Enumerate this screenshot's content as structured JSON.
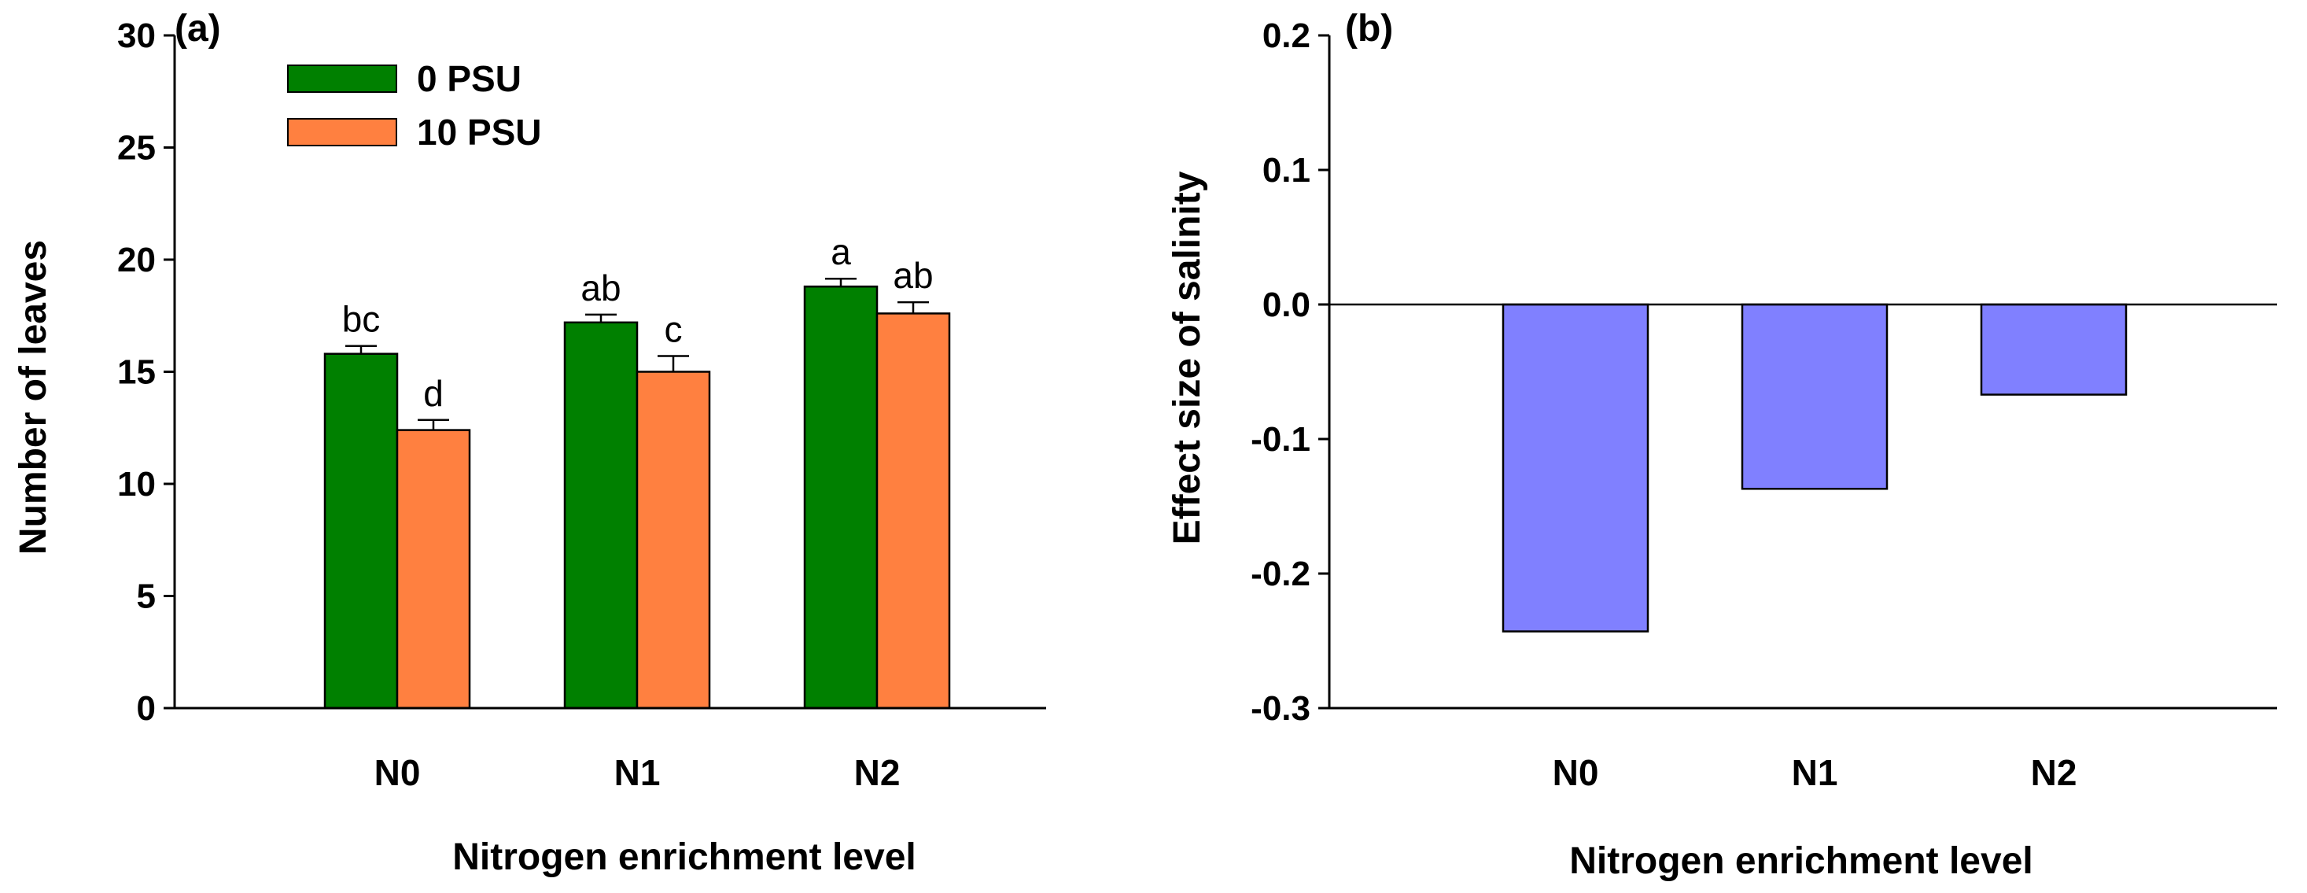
{
  "colors": {
    "series_0psu": "#008000",
    "series_10psu": "#FF8040",
    "effect_bar": "#8080FF",
    "axis": "#000000"
  },
  "chart_data": [
    {
      "panel": "(a)",
      "type": "bar",
      "xlabel": "Nitrogen enrichment level",
      "ylabel": "Number of leaves",
      "categories": [
        "N0",
        "N1",
        "N2"
      ],
      "ylim": [
        0,
        30
      ],
      "yticks": [
        0,
        5,
        10,
        15,
        20,
        25,
        30
      ],
      "legend_position": "top-left",
      "series": [
        {
          "name": "0 PSU",
          "color": "#008000",
          "values": [
            15.8,
            17.2,
            18.8
          ],
          "errors": [
            0.35,
            0.35,
            0.35
          ],
          "letters": [
            "bc",
            "ab",
            "a"
          ]
        },
        {
          "name": "10 PSU",
          "color": "#FF8040",
          "values": [
            12.4,
            15.0,
            17.6
          ],
          "errors": [
            0.45,
            0.7,
            0.5
          ],
          "letters": [
            "d",
            "c",
            "ab"
          ]
        }
      ]
    },
    {
      "panel": "(b)",
      "type": "bar",
      "xlabel": "Nitrogen enrichment level",
      "ylabel": "Effect size of salinity",
      "categories": [
        "N0",
        "N1",
        "N2"
      ],
      "ylim": [
        -0.3,
        0.2
      ],
      "yticks": [
        -0.3,
        -0.2,
        -0.1,
        0.0,
        0.1,
        0.2
      ],
      "zero_line": true,
      "series": [
        {
          "name": "Effect size",
          "color": "#8080FF",
          "values": [
            -0.243,
            -0.137,
            -0.067
          ]
        }
      ]
    }
  ]
}
